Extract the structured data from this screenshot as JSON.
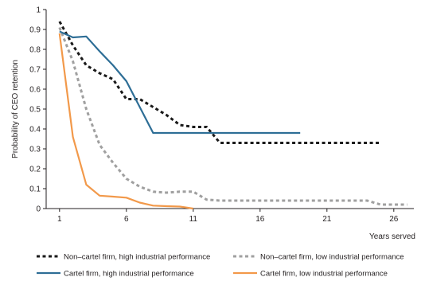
{
  "chart_data": {
    "type": "line",
    "title": "",
    "xlabel": "Years served",
    "ylabel": "Probability of CEO retention",
    "xlim": [
      0,
      27.5
    ],
    "ylim": [
      0,
      1
    ],
    "xticks": [
      1,
      6,
      11,
      16,
      21,
      26
    ],
    "yticks": [
      0,
      0.1,
      0.2,
      0.3,
      0.4,
      0.5,
      0.6,
      0.7,
      0.8,
      0.9,
      1
    ],
    "ytick_labels": [
      "0",
      "0.1",
      "0.2",
      "0.3",
      "0.4",
      "0.5",
      "0.6",
      "0.7",
      "0.8",
      "0.9",
      "1"
    ],
    "grid": false,
    "legend_position": "bottom",
    "series": [
      {
        "name": "Non–cartel firm, high industrial performance",
        "color": "#1a1a1a",
        "dash": "dashed-bold",
        "x": [
          1,
          2,
          3,
          4,
          5,
          6,
          7,
          8,
          9,
          10,
          11,
          12,
          13,
          14,
          15,
          16,
          17,
          18,
          19,
          20,
          21,
          22,
          23,
          24,
          25
        ],
        "y": [
          0.94,
          0.82,
          0.72,
          0.68,
          0.65,
          0.55,
          0.55,
          0.51,
          0.47,
          0.42,
          0.41,
          0.41,
          0.33,
          0.33,
          0.33,
          0.33,
          0.33,
          0.33,
          0.33,
          0.33,
          0.33,
          0.33,
          0.33,
          0.33,
          0.33
        ]
      },
      {
        "name": "Non–cartel firm, low industrial performance",
        "color": "#a0a0a0",
        "dash": "dashed-bold",
        "x": [
          1,
          2,
          3,
          4,
          5,
          6,
          7,
          8,
          9,
          10,
          11,
          12,
          13,
          14,
          15,
          16,
          17,
          18,
          19,
          20,
          21,
          22,
          23,
          24,
          25,
          26,
          27
        ],
        "y": [
          0.91,
          0.74,
          0.5,
          0.32,
          0.23,
          0.15,
          0.11,
          0.085,
          0.08,
          0.085,
          0.085,
          0.045,
          0.04,
          0.04,
          0.04,
          0.04,
          0.04,
          0.04,
          0.04,
          0.04,
          0.04,
          0.04,
          0.04,
          0.04,
          0.02,
          0.02,
          0.02
        ]
      },
      {
        "name": "Cartel firm, high industrial performance",
        "color": "#2e6e96",
        "dash": "solid",
        "x": [
          1,
          2,
          3,
          4,
          5,
          6,
          7,
          8,
          9,
          10,
          11,
          12,
          13,
          14,
          15,
          16,
          17,
          18,
          19
        ],
        "y": [
          0.89,
          0.86,
          0.865,
          0.79,
          0.72,
          0.64,
          0.51,
          0.38,
          0.38,
          0.38,
          0.38,
          0.38,
          0.38,
          0.38,
          0.38,
          0.38,
          0.38,
          0.38,
          0.38
        ]
      },
      {
        "name": "Cartel firm, low industrial performance",
        "color": "#f2994a",
        "dash": "solid",
        "x": [
          1,
          2,
          3,
          4,
          5,
          6,
          7,
          8,
          9,
          10,
          11
        ],
        "y": [
          0.88,
          0.36,
          0.12,
          0.065,
          0.06,
          0.055,
          0.03,
          0.015,
          0.012,
          0.01,
          0
        ]
      }
    ]
  }
}
